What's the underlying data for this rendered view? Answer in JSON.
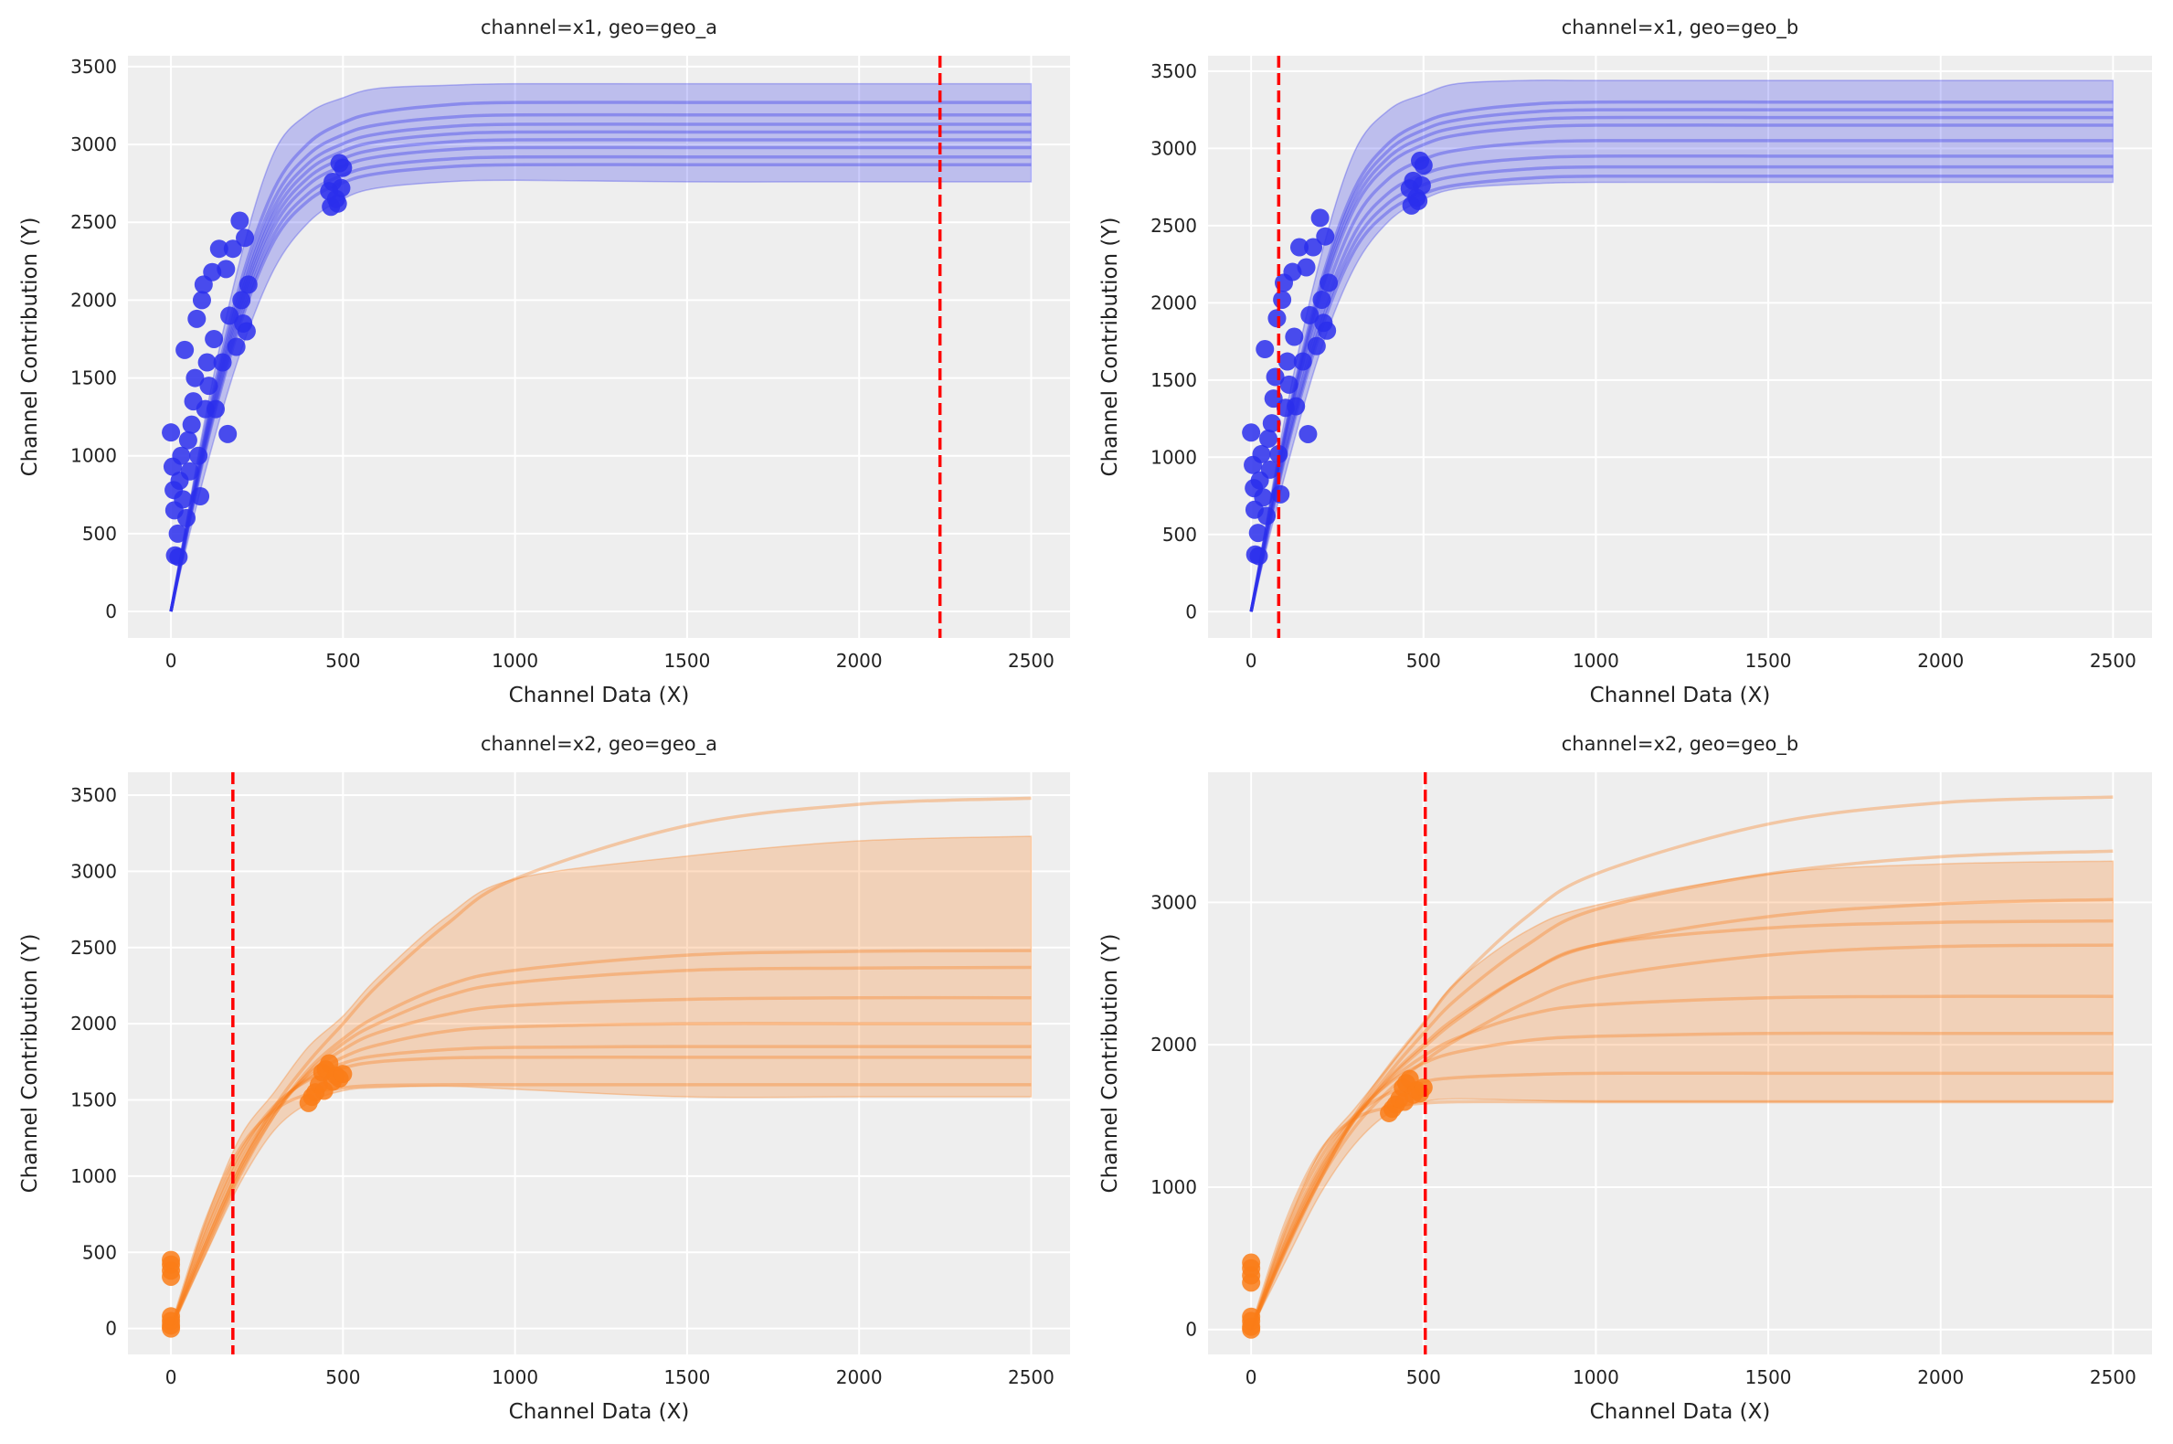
{
  "chart_data": [
    {
      "type": "line",
      "title": "channel=x1, geo=geo_a",
      "xlabel": "Channel Data (X)",
      "ylabel": "Channel Contribution (Y)",
      "xlim": [
        -125,
        2613
      ],
      "ylim": [
        -170,
        3570
      ],
      "xticks": [
        0,
        500,
        1000,
        1500,
        2000,
        2500
      ],
      "yticks": [
        0,
        500,
        1000,
        1500,
        2000,
        2500,
        3000,
        3500
      ],
      "grid": true,
      "color": "#2a2eec",
      "vline": {
        "x": 2235,
        "color": "#ff0000",
        "style": "dashed"
      },
      "x": [
        0,
        100,
        200,
        300,
        400,
        500,
        600,
        800,
        1000,
        1500,
        2000,
        2500
      ],
      "band": {
        "lower": [
          0,
          900,
          1650,
          2200,
          2500,
          2650,
          2720,
          2760,
          2770,
          2760,
          2760,
          2760
        ],
        "upper": [
          0,
          1250,
          2250,
          2950,
          3200,
          3300,
          3360,
          3380,
          3390,
          3390,
          3390,
          3390
        ]
      },
      "curves": [
        [
          0,
          1177,
          2093,
          2714,
          3008,
          3139,
          3205,
          3254,
          3270,
          3270,
          3270,
          3270
        ],
        [
          0,
          1148,
          2042,
          2648,
          2935,
          3062,
          3126,
          3174,
          3190,
          3190,
          3190,
          3190
        ],
        [
          0,
          1127,
          2003,
          2598,
          2880,
          3005,
          3067,
          3114,
          3130,
          3130,
          3130,
          3130
        ],
        [
          0,
          1109,
          1971,
          2556,
          2834,
          2957,
          3018,
          3065,
          3080,
          3080,
          3080,
          3080
        ],
        [
          0,
          1091,
          1939,
          2515,
          2788,
          2909,
          2969,
          3015,
          3030,
          3030,
          3030,
          3030
        ],
        [
          0,
          1073,
          1907,
          2473,
          2742,
          2861,
          2920,
          2965,
          2980,
          2980,
          2980,
          2980
        ],
        [
          0,
          1051,
          1869,
          2424,
          2686,
          2803,
          2862,
          2905,
          2920,
          2920,
          2920,
          2920
        ],
        [
          0,
          1033,
          1837,
          2382,
          2640,
          2755,
          2813,
          2856,
          2870,
          2870,
          2870,
          2870
        ]
      ],
      "points": [
        [
          0,
          1150
        ],
        [
          5,
          930
        ],
        [
          8,
          780
        ],
        [
          10,
          650
        ],
        [
          12,
          360
        ],
        [
          20,
          500
        ],
        [
          22,
          350
        ],
        [
          25,
          840
        ],
        [
          30,
          1000
        ],
        [
          35,
          720
        ],
        [
          40,
          1680
        ],
        [
          45,
          600
        ],
        [
          50,
          1100
        ],
        [
          55,
          900
        ],
        [
          60,
          1200
        ],
        [
          65,
          1350
        ],
        [
          70,
          1500
        ],
        [
          75,
          1880
        ],
        [
          80,
          1000
        ],
        [
          85,
          740
        ],
        [
          90,
          2000
        ],
        [
          95,
          2100
        ],
        [
          100,
          1300
        ],
        [
          105,
          1600
        ],
        [
          110,
          1450
        ],
        [
          120,
          2180
        ],
        [
          125,
          1750
        ],
        [
          130,
          1300
        ],
        [
          140,
          2330
        ],
        [
          150,
          1600
        ],
        [
          160,
          2200
        ],
        [
          165,
          1140
        ],
        [
          170,
          1900
        ],
        [
          180,
          2330
        ],
        [
          190,
          1700
        ],
        [
          200,
          2510
        ],
        [
          205,
          2000
        ],
        [
          210,
          1850
        ],
        [
          215,
          2400
        ],
        [
          220,
          1800
        ],
        [
          225,
          2100
        ],
        [
          460,
          2700
        ],
        [
          465,
          2600
        ],
        [
          470,
          2760
        ],
        [
          480,
          2650
        ],
        [
          490,
          2880
        ],
        [
          495,
          2720
        ],
        [
          500,
          2850
        ],
        [
          485,
          2620
        ]
      ]
    },
    {
      "type": "line",
      "title": "channel=x1, geo=geo_b",
      "xlabel": "Channel Data (X)",
      "ylabel": "Channel Contribution (Y)",
      "xlim": [
        -125,
        2613
      ],
      "ylim": [
        -170,
        3600
      ],
      "xticks": [
        0,
        500,
        1000,
        1500,
        2000,
        2500
      ],
      "yticks": [
        0,
        500,
        1000,
        1500,
        2000,
        2500,
        3000,
        3500
      ],
      "grid": true,
      "color": "#2a2eec",
      "vline": {
        "x": 80,
        "color": "#ff0000",
        "style": "dashed"
      },
      "x": [
        0,
        100,
        200,
        300,
        400,
        500,
        600,
        800,
        1000,
        1500,
        2000,
        2500
      ],
      "band": {
        "lower": [
          0,
          900,
          1680,
          2230,
          2530,
          2670,
          2740,
          2770,
          2780,
          2780,
          2780,
          2780
        ],
        "upper": [
          0,
          1280,
          2280,
          2980,
          3250,
          3350,
          3420,
          3440,
          3440,
          3440,
          3440,
          3440
        ]
      },
      "curves": [
        [
          0,
          1188,
          2112,
          2739,
          3036,
          3168,
          3234,
          3284,
          3300,
          3300,
          3300,
          3300
        ],
        [
          0,
          1170,
          2080,
          2698,
          2990,
          3120,
          3185,
          3234,
          3250,
          3250,
          3250,
          3250
        ],
        [
          0,
          1152,
          2048,
          2656,
          2944,
          3072,
          3136,
          3184,
          3200,
          3200,
          3200,
          3200
        ],
        [
          0,
          1134,
          2016,
          2615,
          2898,
          3024,
          3087,
          3134,
          3150,
          3150,
          3150,
          3150
        ],
        [
          0,
          1098,
          1952,
          2532,
          2806,
          2928,
          2989,
          3035,
          3050,
          3050,
          3050,
          3050
        ],
        [
          0,
          1062,
          1888,
          2449,
          2714,
          2832,
          2891,
          2935,
          2950,
          2950,
          2950,
          2950
        ],
        [
          0,
          1037,
          1843,
          2390,
          2650,
          2765,
          2822,
          2866,
          2880,
          2880,
          2880,
          2880
        ],
        [
          0,
          1015,
          1805,
          2341,
          2594,
          2707,
          2764,
          2806,
          2820,
          2820,
          2820,
          2820
        ]
      ],
      "points": [
        [
          0,
          1160
        ],
        [
          5,
          950
        ],
        [
          8,
          800
        ],
        [
          10,
          660
        ],
        [
          12,
          370
        ],
        [
          20,
          510
        ],
        [
          22,
          360
        ],
        [
          25,
          850
        ],
        [
          30,
          1020
        ],
        [
          35,
          740
        ],
        [
          40,
          1700
        ],
        [
          45,
          620
        ],
        [
          50,
          1120
        ],
        [
          55,
          920
        ],
        [
          60,
          1220
        ],
        [
          65,
          1380
        ],
        [
          70,
          1520
        ],
        [
          75,
          1900
        ],
        [
          80,
          1020
        ],
        [
          85,
          760
        ],
        [
          90,
          2020
        ],
        [
          95,
          2130
        ],
        [
          100,
          1320
        ],
        [
          105,
          1620
        ],
        [
          110,
          1470
        ],
        [
          120,
          2200
        ],
        [
          125,
          1780
        ],
        [
          130,
          1330
        ],
        [
          140,
          2360
        ],
        [
          150,
          1620
        ],
        [
          160,
          2230
        ],
        [
          165,
          1150
        ],
        [
          170,
          1920
        ],
        [
          180,
          2360
        ],
        [
          190,
          1720
        ],
        [
          200,
          2550
        ],
        [
          205,
          2020
        ],
        [
          210,
          1870
        ],
        [
          215,
          2430
        ],
        [
          220,
          1820
        ],
        [
          225,
          2130
        ],
        [
          460,
          2740
        ],
        [
          465,
          2630
        ],
        [
          470,
          2790
        ],
        [
          480,
          2680
        ],
        [
          490,
          2920
        ],
        [
          495,
          2760
        ],
        [
          500,
          2890
        ],
        [
          485,
          2660
        ]
      ]
    },
    {
      "type": "line",
      "title": "channel=x2, geo=geo_a",
      "xlabel": "Channel Data (X)",
      "ylabel": "Channel Contribution (Y)",
      "xlim": [
        -125,
        2613
      ],
      "ylim": [
        -170,
        3650
      ],
      "xticks": [
        0,
        500,
        1000,
        1500,
        2000,
        2500
      ],
      "yticks": [
        0,
        500,
        1000,
        1500,
        2000,
        2500,
        3000,
        3500
      ],
      "grid": true,
      "color": "#fa7c17",
      "vline": {
        "x": 180,
        "color": "#ff0000",
        "style": "dashed"
      },
      "x": [
        0,
        100,
        200,
        300,
        400,
        500,
        600,
        800,
        1000,
        1500,
        2000,
        2500
      ],
      "band": {
        "lower": [
          0,
          480,
          950,
          1300,
          1480,
          1560,
          1580,
          1590,
          1570,
          1520,
          1520,
          1520
        ],
        "upper": [
          0,
          700,
          1250,
          1550,
          1850,
          2050,
          2300,
          2700,
          2950,
          3100,
          3200,
          3230
        ]
      },
      "curves": [
        [
          0,
          550,
          1050,
          1450,
          1750,
          2000,
          2250,
          2650,
          2950,
          3300,
          3440,
          3480
        ],
        [
          0,
          500,
          1000,
          1400,
          1700,
          1900,
          2050,
          2250,
          2350,
          2450,
          2475,
          2480
        ],
        [
          0,
          520,
          1020,
          1400,
          1680,
          1870,
          2000,
          2180,
          2270,
          2350,
          2365,
          2370
        ],
        [
          0,
          550,
          1050,
          1420,
          1670,
          1830,
          1940,
          2060,
          2120,
          2160,
          2170,
          2170
        ],
        [
          0,
          580,
          1080,
          1430,
          1650,
          1780,
          1860,
          1950,
          1980,
          2000,
          2000,
          2000
        ],
        [
          0,
          620,
          1120,
          1450,
          1640,
          1740,
          1790,
          1830,
          1845,
          1850,
          1850,
          1850
        ],
        [
          0,
          650,
          1150,
          1460,
          1630,
          1710,
          1750,
          1775,
          1780,
          1780,
          1780,
          1780
        ],
        [
          0,
          700,
          1180,
          1430,
          1540,
          1580,
          1595,
          1600,
          1600,
          1600,
          1600,
          1600
        ]
      ],
      "points": [
        [
          0,
          0
        ],
        [
          0,
          20
        ],
        [
          0,
          50
        ],
        [
          0,
          80
        ],
        [
          0,
          340
        ],
        [
          0,
          380
        ],
        [
          0,
          420
        ],
        [
          0,
          450
        ],
        [
          400,
          1480
        ],
        [
          410,
          1520
        ],
        [
          420,
          1550
        ],
        [
          430,
          1600
        ],
        [
          440,
          1680
        ],
        [
          450,
          1700
        ],
        [
          460,
          1740
        ],
        [
          470,
          1620
        ],
        [
          480,
          1660
        ],
        [
          490,
          1640
        ],
        [
          500,
          1670
        ],
        [
          445,
          1560
        ]
      ]
    },
    {
      "type": "line",
      "title": "channel=x2, geo=geo_b",
      "xlabel": "Channel Data (X)",
      "ylabel": "Channel Contribution (Y)",
      "xlim": [
        -125,
        2613
      ],
      "ylim": [
        -175,
        3914
      ],
      "xticks": [
        0,
        500,
        1000,
        1500,
        2000,
        2500
      ],
      "yticks": [
        0,
        1000,
        2000,
        3000
      ],
      "grid": true,
      "color": "#fa7c17",
      "vline": {
        "x": 505,
        "color": "#ff0000",
        "style": "dashed"
      },
      "x": [
        0,
        100,
        200,
        300,
        400,
        500,
        600,
        800,
        1000,
        1500,
        2000,
        2500
      ],
      "band": {
        "lower": [
          0,
          480,
          950,
          1300,
          1520,
          1600,
          1620,
          1610,
          1600,
          1600,
          1600,
          1600
        ],
        "upper": [
          0,
          700,
          1250,
          1550,
          1850,
          2150,
          2450,
          2800,
          2980,
          3200,
          3270,
          3290
        ]
      },
      "curves": [
        [
          0,
          550,
          1050,
          1500,
          1850,
          2150,
          2450,
          2900,
          3200,
          3550,
          3700,
          3740
        ],
        [
          0,
          560,
          1060,
          1480,
          1800,
          2080,
          2330,
          2700,
          2950,
          3200,
          3320,
          3360
        ],
        [
          0,
          580,
          1080,
          1470,
          1770,
          2000,
          2200,
          2500,
          2700,
          2900,
          2990,
          3020
        ],
        [
          0,
          600,
          1100,
          1480,
          1760,
          1980,
          2180,
          2500,
          2700,
          2820,
          2860,
          2870
        ],
        [
          0,
          570,
          1050,
          1420,
          1680,
          1880,
          2040,
          2300,
          2470,
          2630,
          2690,
          2700
        ],
        [
          0,
          620,
          1120,
          1480,
          1740,
          1920,
          2050,
          2210,
          2280,
          2330,
          2340,
          2340
        ],
        [
          0,
          650,
          1150,
          1500,
          1730,
          1870,
          1950,
          2030,
          2060,
          2080,
          2080,
          2080
        ],
        [
          0,
          700,
          1200,
          1500,
          1660,
          1740,
          1770,
          1790,
          1800,
          1800,
          1800,
          1800
        ],
        [
          0,
          750,
          1250,
          1480,
          1560,
          1590,
          1600,
          1600,
          1600,
          1600,
          1600,
          1600
        ]
      ],
      "points": [
        [
          0,
          0
        ],
        [
          0,
          20
        ],
        [
          0,
          60
        ],
        [
          0,
          90
        ],
        [
          0,
          330
        ],
        [
          0,
          380
        ],
        [
          0,
          430
        ],
        [
          0,
          470
        ],
        [
          400,
          1520
        ],
        [
          410,
          1550
        ],
        [
          420,
          1580
        ],
        [
          430,
          1620
        ],
        [
          440,
          1700
        ],
        [
          450,
          1730
        ],
        [
          460,
          1760
        ],
        [
          470,
          1650
        ],
        [
          480,
          1680
        ],
        [
          490,
          1660
        ],
        [
          500,
          1700
        ],
        [
          445,
          1600
        ]
      ]
    }
  ]
}
